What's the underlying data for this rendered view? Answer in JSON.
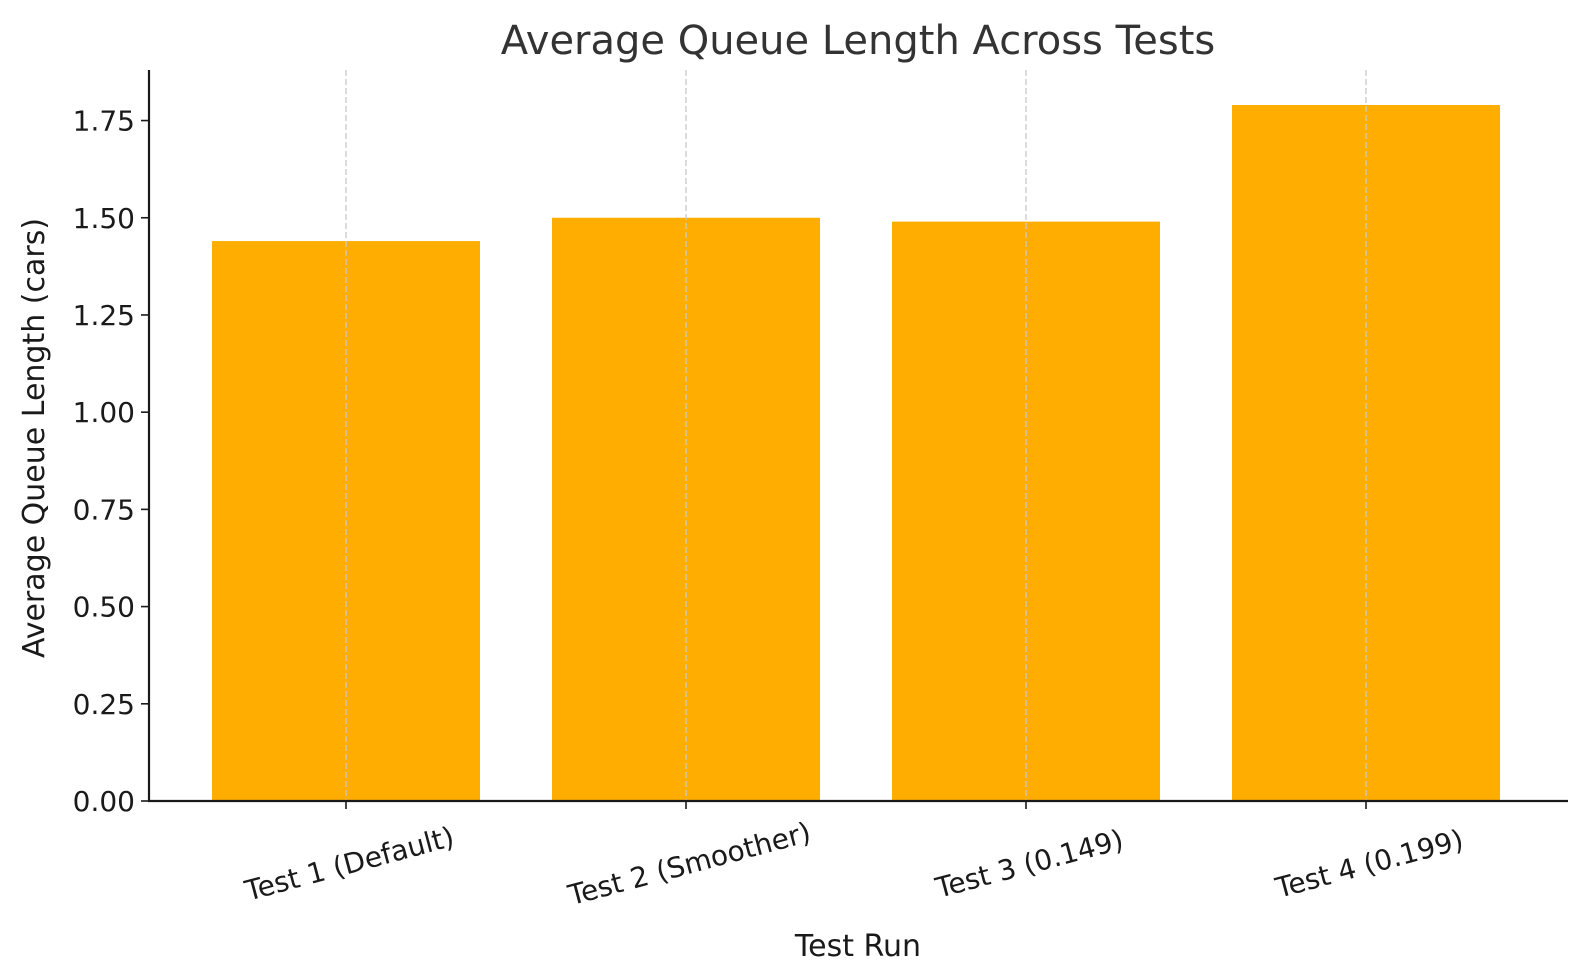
{
  "chart_data": {
    "type": "bar",
    "title": "Average Queue Length Across Tests",
    "xlabel": "Test Run",
    "ylabel": "Average Queue Length (cars)",
    "categories": [
      "Test 1 (Default)",
      "Test 2 (Smoother)",
      "Test 3 (0.149)",
      "Test 4 (0.199)"
    ],
    "values": [
      1.44,
      1.5,
      1.49,
      1.79
    ],
    "ylim": [
      0,
      1.88
    ],
    "yticks": [
      0.0,
      0.25,
      0.5,
      0.75,
      1.0,
      1.25,
      1.5,
      1.75
    ],
    "ytick_labels": [
      "0.00",
      "0.25",
      "0.50",
      "0.75",
      "1.00",
      "1.25",
      "1.50",
      "1.75"
    ],
    "grid": "x-dashed",
    "bar_color": "#FFAE00",
    "xtick_rotation_deg": -15
  }
}
